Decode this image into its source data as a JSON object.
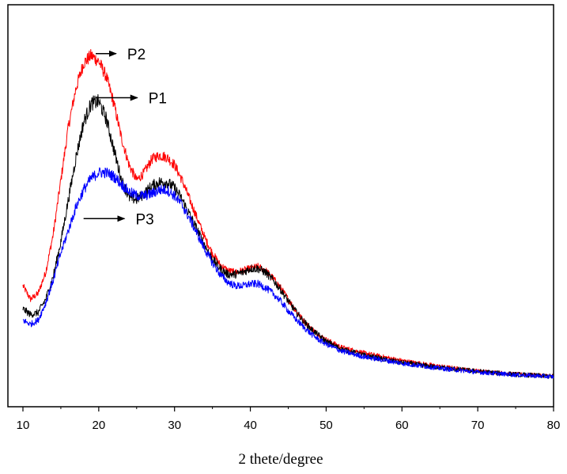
{
  "chart_data": {
    "type": "line",
    "title": "",
    "xlabel": "2 thete/degree",
    "ylabel": "",
    "xlim": [
      10,
      80
    ],
    "xticks": [
      10,
      20,
      30,
      40,
      50,
      60,
      70,
      80
    ],
    "y_ticks_shown": false,
    "grid": false,
    "legend": "none",
    "series": [
      {
        "label": "P2",
        "color": "#ff0000",
        "noise": 0.025,
        "points": [
          [
            10,
            0.245
          ],
          [
            11,
            0.21
          ],
          [
            12,
            0.225
          ],
          [
            13,
            0.28
          ],
          [
            14,
            0.38
          ],
          [
            15,
            0.52
          ],
          [
            16,
            0.66
          ],
          [
            17,
            0.76
          ],
          [
            18,
            0.825
          ],
          [
            19,
            0.845
          ],
          [
            20,
            0.83
          ],
          [
            21,
            0.79
          ],
          [
            22,
            0.72
          ],
          [
            23,
            0.63
          ],
          [
            24,
            0.56
          ],
          [
            25,
            0.52
          ],
          [
            26,
            0.54
          ],
          [
            27,
            0.575
          ],
          [
            28,
            0.585
          ],
          [
            29,
            0.58
          ],
          [
            30,
            0.56
          ],
          [
            31,
            0.52
          ],
          [
            32,
            0.47
          ],
          [
            33,
            0.42
          ],
          [
            34,
            0.37
          ],
          [
            35,
            0.33
          ],
          [
            36,
            0.3
          ],
          [
            37,
            0.285
          ],
          [
            38,
            0.28
          ],
          [
            39,
            0.285
          ],
          [
            40,
            0.29
          ],
          [
            41,
            0.295
          ],
          [
            42,
            0.285
          ],
          [
            43,
            0.265
          ],
          [
            44,
            0.24
          ],
          [
            45,
            0.21
          ],
          [
            46,
            0.18
          ],
          [
            47,
            0.155
          ],
          [
            48,
            0.135
          ],
          [
            49,
            0.118
          ],
          [
            50,
            0.105
          ],
          [
            52,
            0.085
          ],
          [
            55,
            0.07
          ],
          [
            58,
            0.058
          ],
          [
            60,
            0.05
          ],
          [
            65,
            0.035
          ],
          [
            70,
            0.023
          ],
          [
            75,
            0.015
          ],
          [
            80,
            0.01
          ]
        ]
      },
      {
        "label": "P1",
        "color": "#000000",
        "noise": 0.03,
        "points": [
          [
            10,
            0.185
          ],
          [
            11,
            0.17
          ],
          [
            12,
            0.175
          ],
          [
            13,
            0.21
          ],
          [
            14,
            0.27
          ],
          [
            15,
            0.36
          ],
          [
            16,
            0.47
          ],
          [
            17,
            0.58
          ],
          [
            18,
            0.67
          ],
          [
            19,
            0.72
          ],
          [
            20,
            0.725
          ],
          [
            21,
            0.68
          ],
          [
            22,
            0.6
          ],
          [
            23,
            0.52
          ],
          [
            24,
            0.475
          ],
          [
            25,
            0.47
          ],
          [
            26,
            0.485
          ],
          [
            27,
            0.505
          ],
          [
            28,
            0.515
          ],
          [
            29,
            0.515
          ],
          [
            30,
            0.5
          ],
          [
            31,
            0.47
          ],
          [
            32,
            0.43
          ],
          [
            33,
            0.39
          ],
          [
            34,
            0.35
          ],
          [
            35,
            0.315
          ],
          [
            36,
            0.29
          ],
          [
            37,
            0.275
          ],
          [
            38,
            0.275
          ],
          [
            39,
            0.28
          ],
          [
            40,
            0.29
          ],
          [
            41,
            0.29
          ],
          [
            42,
            0.28
          ],
          [
            43,
            0.26
          ],
          [
            44,
            0.235
          ],
          [
            45,
            0.205
          ],
          [
            46,
            0.178
          ],
          [
            47,
            0.153
          ],
          [
            48,
            0.133
          ],
          [
            49,
            0.116
          ],
          [
            50,
            0.1
          ],
          [
            52,
            0.08
          ],
          [
            55,
            0.064
          ],
          [
            58,
            0.052
          ],
          [
            60,
            0.045
          ],
          [
            65,
            0.032
          ],
          [
            70,
            0.022
          ],
          [
            75,
            0.014
          ],
          [
            80,
            0.009
          ]
        ]
      },
      {
        "label": "P3",
        "color": "#0000ff",
        "noise": 0.028,
        "points": [
          [
            10,
            0.155
          ],
          [
            11,
            0.145
          ],
          [
            12,
            0.155
          ],
          [
            13,
            0.2
          ],
          [
            14,
            0.26
          ],
          [
            15,
            0.33
          ],
          [
            16,
            0.39
          ],
          [
            17,
            0.45
          ],
          [
            18,
            0.495
          ],
          [
            19,
            0.525
          ],
          [
            20,
            0.54
          ],
          [
            21,
            0.54
          ],
          [
            22,
            0.53
          ],
          [
            23,
            0.51
          ],
          [
            24,
            0.49
          ],
          [
            25,
            0.48
          ],
          [
            26,
            0.48
          ],
          [
            27,
            0.485
          ],
          [
            28,
            0.495
          ],
          [
            29,
            0.495
          ],
          [
            30,
            0.48
          ],
          [
            31,
            0.455
          ],
          [
            32,
            0.42
          ],
          [
            33,
            0.38
          ],
          [
            34,
            0.34
          ],
          [
            35,
            0.305
          ],
          [
            36,
            0.275
          ],
          [
            37,
            0.255
          ],
          [
            38,
            0.245
          ],
          [
            39,
            0.245
          ],
          [
            40,
            0.25
          ],
          [
            41,
            0.25
          ],
          [
            42,
            0.24
          ],
          [
            43,
            0.225
          ],
          [
            44,
            0.205
          ],
          [
            45,
            0.18
          ],
          [
            46,
            0.158
          ],
          [
            47,
            0.138
          ],
          [
            48,
            0.12
          ],
          [
            49,
            0.105
          ],
          [
            50,
            0.093
          ],
          [
            52,
            0.075
          ],
          [
            55,
            0.06
          ],
          [
            58,
            0.05
          ],
          [
            60,
            0.043
          ],
          [
            65,
            0.03
          ],
          [
            70,
            0.02
          ],
          [
            75,
            0.013
          ],
          [
            80,
            0.008
          ]
        ]
      }
    ],
    "annotations": [
      {
        "text": "P2",
        "arrow_from": [
          19.6,
          0.85
        ],
        "arrow_to": [
          22.3,
          0.85
        ]
      },
      {
        "text": "P1",
        "arrow_from": [
          19.6,
          0.735
        ],
        "arrow_to": [
          25.1,
          0.735
        ]
      },
      {
        "text": "P3",
        "arrow_from": [
          18.0,
          0.42
        ],
        "arrow_to": [
          23.4,
          0.42
        ]
      }
    ]
  }
}
